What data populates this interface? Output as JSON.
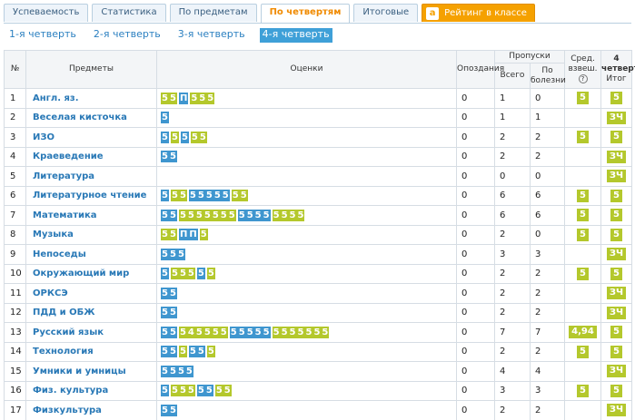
{
  "tabs": [
    {
      "label": "Успеваемость",
      "active": false,
      "width": 82
    },
    {
      "label": "Статистика",
      "active": false,
      "width": 73
    },
    {
      "label": "По предметам",
      "active": false,
      "width": 84
    },
    {
      "label": "По четвертям",
      "active": true,
      "width": 80
    },
    {
      "label": "Итоговые",
      "active": false,
      "width": 62
    },
    {
      "label": "Рейтинг в классе",
      "active": false,
      "rating": true,
      "width": 113
    }
  ],
  "rating_logo": "a",
  "quarters": [
    {
      "label": "1-я четверть",
      "active": false
    },
    {
      "label": "2-я четверть",
      "active": false
    },
    {
      "label": "3-я четверть",
      "active": false
    },
    {
      "label": "4-я четверть",
      "active": true
    }
  ],
  "headers": {
    "num": "№",
    "subject": "Предметы",
    "grades": "Оценки",
    "late": "Опоздания",
    "absences": "Пропуски",
    "total": "Всего",
    "sick": "По болезни",
    "avg": "Сред. взвеш.",
    "quarter_top": "4 четверть",
    "final": "Итог"
  },
  "colors": {
    "blue_grade": "#3f96cf",
    "green_grade": "#b4c82c",
    "link": "#2878b6",
    "active_tab": "#f08a00"
  },
  "rows": [
    {
      "num": "1",
      "subject": "Англ. яз.",
      "grades": [
        [
          "y",
          "5"
        ],
        [
          "y",
          "5"
        ],
        [
          "b",
          "П"
        ],
        [
          "y",
          "5"
        ],
        [
          "y",
          "5"
        ],
        [
          "y",
          "5"
        ]
      ],
      "late": "0",
      "total": "1",
      "sick": "0",
      "avg": "5",
      "final": "5"
    },
    {
      "num": "2",
      "subject": "Веселая кисточка",
      "grades": [
        [
          "b",
          "5"
        ]
      ],
      "late": "0",
      "total": "1",
      "sick": "1",
      "avg": "",
      "final": "ЗЧ"
    },
    {
      "num": "3",
      "subject": "ИЗО",
      "grades": [
        [
          "b",
          "5"
        ],
        [
          "y",
          "5"
        ],
        [
          "b",
          "5"
        ],
        [
          "y",
          "5"
        ],
        [
          "y",
          "5"
        ]
      ],
      "late": "0",
      "total": "2",
      "sick": "2",
      "avg": "5",
      "final": "5"
    },
    {
      "num": "4",
      "subject": "Краеведение",
      "grades": [
        [
          "b",
          "5"
        ],
        [
          "b",
          "5"
        ]
      ],
      "late": "0",
      "total": "2",
      "sick": "2",
      "avg": "",
      "final": "ЗЧ"
    },
    {
      "num": "5",
      "subject": "Литература",
      "grades": [],
      "late": "0",
      "total": "0",
      "sick": "0",
      "avg": "",
      "final": "ЗЧ"
    },
    {
      "num": "6",
      "subject": "Литературное чтение",
      "grades": [
        [
          "b",
          "5"
        ],
        [
          "y",
          "5"
        ],
        [
          "y",
          "5"
        ],
        [
          "b",
          "5"
        ],
        [
          "b",
          "5"
        ],
        [
          "b",
          "5"
        ],
        [
          "b",
          "5"
        ],
        [
          "b",
          "5"
        ],
        [
          "y",
          "5"
        ],
        [
          "y",
          "5"
        ]
      ],
      "late": "0",
      "total": "6",
      "sick": "6",
      "avg": "5",
      "final": "5"
    },
    {
      "num": "7",
      "subject": "Математика",
      "grades": [
        [
          "b",
          "5"
        ],
        [
          "b",
          "5"
        ],
        [
          "y",
          "5"
        ],
        [
          "y",
          "5"
        ],
        [
          "y",
          "5"
        ],
        [
          "y",
          "5"
        ],
        [
          "y",
          "5"
        ],
        [
          "y",
          "5"
        ],
        [
          "y",
          "5"
        ],
        [
          "b",
          "5"
        ],
        [
          "b",
          "5"
        ],
        [
          "b",
          "5"
        ],
        [
          "b",
          "5"
        ],
        [
          "y",
          "5"
        ],
        [
          "y",
          "5"
        ],
        [
          "y",
          "5"
        ],
        [
          "y",
          "5"
        ]
      ],
      "late": "0",
      "total": "6",
      "sick": "6",
      "avg": "5",
      "final": "5"
    },
    {
      "num": "8",
      "subject": "Музыка",
      "grades": [
        [
          "y",
          "5"
        ],
        [
          "y",
          "5"
        ],
        [
          "b",
          "П"
        ],
        [
          "b",
          "П"
        ],
        [
          "y",
          "5"
        ]
      ],
      "late": "0",
      "total": "2",
      "sick": "0",
      "avg": "5",
      "final": "5"
    },
    {
      "num": "9",
      "subject": "Непоседы",
      "grades": [
        [
          "b",
          "5"
        ],
        [
          "b",
          "5"
        ],
        [
          "b",
          "5"
        ]
      ],
      "late": "0",
      "total": "3",
      "sick": "3",
      "avg": "",
      "final": "ЗЧ"
    },
    {
      "num": "10",
      "subject": "Окружающий мир",
      "grades": [
        [
          "b",
          "5"
        ],
        [
          "y",
          "5"
        ],
        [
          "y",
          "5"
        ],
        [
          "y",
          "5"
        ],
        [
          "b",
          "5"
        ],
        [
          "y",
          "5"
        ]
      ],
      "late": "0",
      "total": "2",
      "sick": "2",
      "avg": "5",
      "final": "5"
    },
    {
      "num": "11",
      "subject": "ОРКСЭ",
      "grades": [
        [
          "b",
          "5"
        ],
        [
          "b",
          "5"
        ]
      ],
      "late": "0",
      "total": "2",
      "sick": "2",
      "avg": "",
      "final": "ЗЧ"
    },
    {
      "num": "12",
      "subject": "ПДД и ОБЖ",
      "grades": [
        [
          "b",
          "5"
        ],
        [
          "b",
          "5"
        ]
      ],
      "late": "0",
      "total": "2",
      "sick": "2",
      "avg": "",
      "final": "ЗЧ"
    },
    {
      "num": "13",
      "subject": "Русский язык",
      "grades": [
        [
          "b",
          "5"
        ],
        [
          "b",
          "5"
        ],
        [
          "y",
          "5"
        ],
        [
          "y",
          "4"
        ],
        [
          "y",
          "5"
        ],
        [
          "y",
          "5"
        ],
        [
          "y",
          "5"
        ],
        [
          "y",
          "5"
        ],
        [
          "b",
          "5"
        ],
        [
          "b",
          "5"
        ],
        [
          "b",
          "5"
        ],
        [
          "b",
          "5"
        ],
        [
          "b",
          "5"
        ],
        [
          "y",
          "5"
        ],
        [
          "y",
          "5"
        ],
        [
          "y",
          "5"
        ],
        [
          "y",
          "5"
        ],
        [
          "y",
          "5"
        ],
        [
          "y",
          "5"
        ],
        [
          "y",
          "5"
        ]
      ],
      "late": "0",
      "total": "7",
      "sick": "7",
      "avg": "4,94",
      "final": "5"
    },
    {
      "num": "14",
      "subject": "Технология",
      "grades": [
        [
          "b",
          "5"
        ],
        [
          "b",
          "5"
        ],
        [
          "y",
          "5"
        ],
        [
          "b",
          "5"
        ],
        [
          "b",
          "5"
        ],
        [
          "y",
          "5"
        ]
      ],
      "late": "0",
      "total": "2",
      "sick": "2",
      "avg": "5",
      "final": "5"
    },
    {
      "num": "15",
      "subject": "Умники и умницы",
      "grades": [
        [
          "b",
          "5"
        ],
        [
          "b",
          "5"
        ],
        [
          "b",
          "5"
        ],
        [
          "b",
          "5"
        ]
      ],
      "late": "0",
      "total": "4",
      "sick": "4",
      "avg": "",
      "final": "ЗЧ"
    },
    {
      "num": "16",
      "subject": "Физ. культура",
      "grades": [
        [
          "b",
          "5"
        ],
        [
          "y",
          "5"
        ],
        [
          "y",
          "5"
        ],
        [
          "y",
          "5"
        ],
        [
          "b",
          "5"
        ],
        [
          "b",
          "5"
        ],
        [
          "y",
          "5"
        ],
        [
          "y",
          "5"
        ]
      ],
      "late": "0",
      "total": "3",
      "sick": "3",
      "avg": "5",
      "final": "5"
    },
    {
      "num": "17",
      "subject": "Физкультура",
      "grades": [
        [
          "b",
          "5"
        ],
        [
          "b",
          "5"
        ]
      ],
      "late": "0",
      "total": "2",
      "sick": "2",
      "avg": "",
      "final": "ЗЧ"
    }
  ]
}
